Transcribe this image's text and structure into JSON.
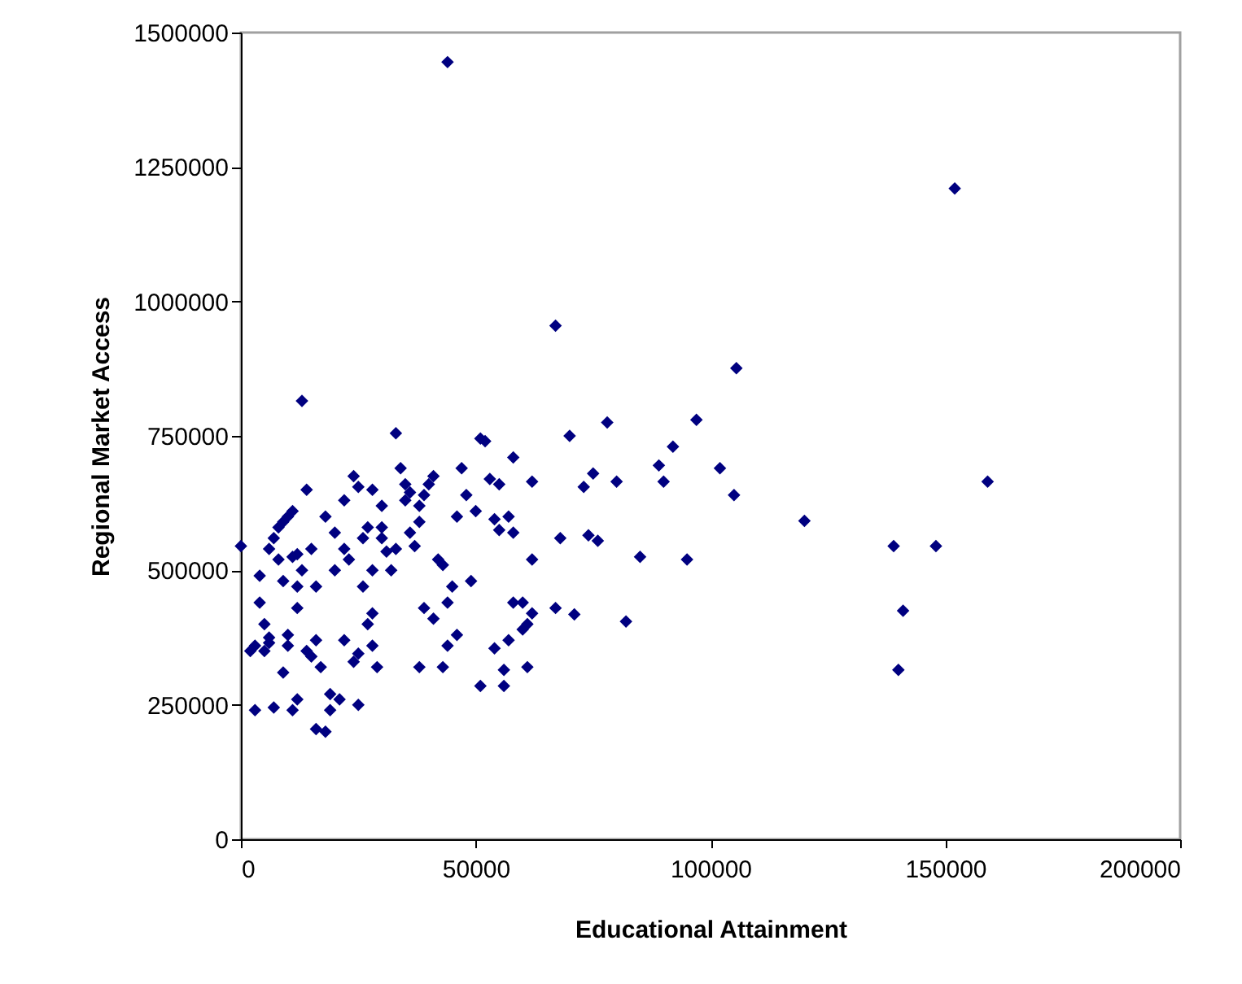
{
  "chart_data": {
    "type": "scatter",
    "xlabel": "Educational Attainment",
    "ylabel": "Regional Market Access",
    "marker": "diamond",
    "grid": false,
    "xlim": [
      0,
      200000
    ],
    "xticks": [
      0,
      50000,
      100000,
      150000,
      200000
    ],
    "ylim": [
      0,
      1500000
    ],
    "yticks": [
      0,
      250000,
      500000,
      750000,
      1000000,
      1250000,
      1500000
    ],
    "series": [
      {
        "color": "#000080",
        "x": [
          44000,
          152000,
          67000,
          105500,
          13000,
          97000,
          78000,
          70000,
          92000,
          102000,
          89000,
          75000,
          159000,
          80000,
          105000,
          90000,
          73000,
          120000,
          139000,
          148000,
          74000,
          76000,
          68000,
          85000,
          95000,
          141000,
          82000,
          140000,
          67000,
          71000,
          62000,
          61000,
          60000,
          62000,
          58000,
          55000,
          51000,
          52000,
          53000,
          57000,
          54000,
          50000,
          55000,
          58000,
          62000,
          49000,
          58000,
          60000,
          57000,
          54000,
          56000,
          51000,
          56000,
          61000,
          0,
          2000,
          3000,
          3000,
          4000,
          4000,
          5000,
          5000,
          6000,
          6000,
          6000,
          7000,
          8000,
          9000,
          10000,
          11000,
          7000,
          9000,
          10000,
          10000,
          11000,
          12000,
          12000,
          12000,
          13000,
          14000,
          8000,
          9000,
          11000,
          12000,
          14000,
          15000,
          15000,
          16000,
          17000,
          16000,
          18000,
          19000,
          19000,
          21000,
          20000,
          22000,
          23000,
          22000,
          24000,
          25000,
          26000,
          27000,
          24000,
          25000,
          27000,
          22000,
          25000,
          28000,
          28000,
          29000,
          28000,
          30000,
          31000,
          32000,
          33000,
          34000,
          35000,
          36000,
          37000,
          38000,
          39000,
          40000,
          41000,
          42000,
          43000,
          38000,
          39000,
          41000,
          43000,
          44000,
          45000,
          46000,
          47000,
          46000,
          48000,
          36000,
          38000,
          35000,
          30000,
          26000,
          20000,
          18000,
          16000,
          33000,
          44000,
          30000,
          28000
        ],
        "values": [
          1445000,
          1210000,
          955000,
          876000,
          815000,
          780000,
          775000,
          750000,
          730000,
          690000,
          695000,
          680000,
          665000,
          665000,
          640000,
          665000,
          655000,
          592000,
          545000,
          545000,
          565000,
          555000,
          560000,
          525000,
          520000,
          425000,
          405000,
          315000,
          430000,
          418000,
          420000,
          400000,
          440000,
          665000,
          710000,
          660000,
          745000,
          740000,
          670000,
          600000,
          595000,
          610000,
          575000,
          570000,
          520000,
          480000,
          440000,
          390000,
          370000,
          355000,
          315000,
          285000,
          285000,
          320000,
          545000,
          350000,
          360000,
          240000,
          490000,
          440000,
          400000,
          350000,
          365000,
          375000,
          540000,
          560000,
          580000,
          590000,
          600000,
          610000,
          245000,
          310000,
          360000,
          380000,
          240000,
          260000,
          430000,
          470000,
          500000,
          650000,
          520000,
          480000,
          525000,
          530000,
          350000,
          340000,
          540000,
          370000,
          320000,
          205000,
          200000,
          240000,
          270000,
          260000,
          500000,
          540000,
          520000,
          630000,
          675000,
          655000,
          560000,
          580000,
          330000,
          250000,
          400000,
          370000,
          345000,
          420000,
          360000,
          320000,
          650000,
          620000,
          535000,
          500000,
          755000,
          690000,
          630000,
          570000,
          545000,
          590000,
          640000,
          660000,
          675000,
          520000,
          510000,
          320000,
          430000,
          410000,
          320000,
          440000,
          470000,
          380000,
          690000,
          600000,
          640000,
          645000,
          620000,
          660000,
          560000,
          470000,
          570000,
          600000,
          470000,
          540000,
          360000,
          580000,
          500000
        ]
      }
    ]
  }
}
